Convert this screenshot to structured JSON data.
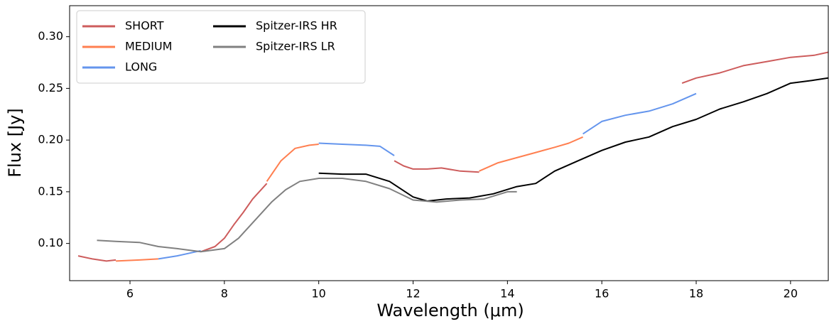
{
  "chart_data": {
    "type": "line",
    "xlabel": "Wavelength (μm)",
    "ylabel": "Flux [Jy]",
    "xlim": [
      4.72,
      20.8
    ],
    "ylim": [
      0.064,
      0.33
    ],
    "xticks": [
      6,
      8,
      10,
      12,
      14,
      16,
      18,
      20
    ],
    "yticks": [
      {
        "value": 0.1,
        "label": "0.10"
      },
      0.15,
      {
        "value": 0.2,
        "label": "0.20"
      },
      0.25,
      {
        "value": 0.3,
        "label": "0.30"
      }
    ],
    "legend": "upper left",
    "series": [
      {
        "name": "SHORT",
        "color": "#cd5c5c",
        "x": [
          4.9,
          5.2,
          5.5,
          5.7,
          6.0,
          7.5,
          7.8,
          8.0,
          8.2,
          8.4,
          8.6,
          8.9,
          9.5,
          11.6,
          11.8,
          12.0,
          12.3,
          12.6,
          13.0,
          13.4,
          15.0,
          17.7,
          18.0,
          18.5,
          19.0,
          19.5,
          20.0,
          20.5,
          20.8
        ],
        "values": [
          0.088,
          0.085,
          0.083,
          0.084,
          null,
          0.092,
          0.097,
          0.105,
          0.118,
          0.13,
          0.143,
          0.158,
          null,
          0.18,
          0.175,
          0.172,
          0.172,
          0.173,
          0.17,
          0.169,
          null,
          0.255,
          0.26,
          0.265,
          0.272,
          0.276,
          0.28,
          0.282,
          0.285
        ]
      },
      {
        "name": "MEDIUM",
        "color": "#ff7f50",
        "x": [
          5.7,
          6.2,
          6.6,
          7.5,
          8.9,
          9.2,
          9.5,
          9.8,
          10.0,
          12.0,
          13.4,
          13.8,
          14.2,
          14.6,
          15.0,
          15.3,
          15.6
        ],
        "values": [
          0.083,
          0.084,
          0.085,
          null,
          0.16,
          0.18,
          0.192,
          0.195,
          0.196,
          null,
          0.17,
          0.178,
          0.183,
          0.188,
          0.193,
          0.197,
          0.203
        ]
      },
      {
        "name": "LONG",
        "color": "#6495ed",
        "x": [
          6.6,
          7.0,
          7.5,
          8.5,
          10.0,
          10.5,
          11.0,
          11.3,
          11.6,
          13.0,
          15.6,
          16.0,
          16.5,
          17.0,
          17.5,
          18.0
        ],
        "values": [
          0.085,
          0.088,
          0.093,
          null,
          0.197,
          0.196,
          0.195,
          0.194,
          0.185,
          null,
          0.206,
          0.218,
          0.224,
          0.228,
          0.235,
          0.245
        ]
      },
      {
        "name": "Spitzer-IRS HR",
        "color": "#000000",
        "x": [
          10.0,
          10.5,
          11.0,
          11.5,
          12.0,
          12.3,
          12.7,
          13.2,
          13.7,
          14.2,
          14.6,
          15.0,
          15.5,
          16.0,
          16.5,
          17.0,
          17.5,
          18.0,
          18.5,
          19.0,
          19.5,
          20.0,
          20.5,
          20.8
        ],
        "values": [
          0.168,
          0.167,
          0.167,
          0.16,
          0.145,
          0.141,
          0.143,
          0.144,
          0.148,
          0.155,
          0.158,
          0.17,
          0.18,
          0.19,
          0.198,
          0.203,
          0.213,
          0.22,
          0.23,
          0.237,
          0.245,
          0.255,
          0.258,
          0.26
        ]
      },
      {
        "name": "Spitzer-IRS LR",
        "color": "#808080",
        "x": [
          5.3,
          5.7,
          6.2,
          6.6,
          7.0,
          7.5,
          8.0,
          8.3,
          8.7,
          9.0,
          9.3,
          9.6,
          10.0,
          10.5,
          11.0,
          11.5,
          12.0,
          12.5,
          13.0,
          13.5,
          14.0,
          14.2
        ],
        "values": [
          0.103,
          0.102,
          0.101,
          0.097,
          0.095,
          0.092,
          0.095,
          0.105,
          0.125,
          0.14,
          0.152,
          0.16,
          0.163,
          0.163,
          0.16,
          0.153,
          0.142,
          0.14,
          0.142,
          0.143,
          0.15,
          0.15
        ]
      }
    ]
  }
}
